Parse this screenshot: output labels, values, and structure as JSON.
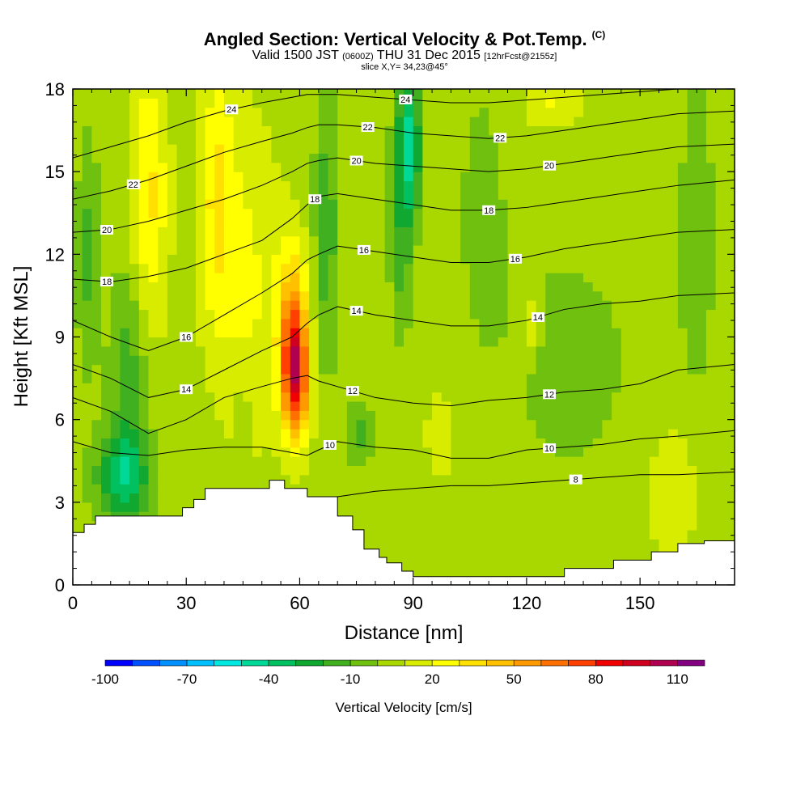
{
  "header": {
    "title": "Angled Section: Vertical Velocity & Pot.Temp.",
    "title_tag": "(C)",
    "subtitle_a": "Valid 1500 JST",
    "subtitle_b": "(0600Z)",
    "subtitle_c": "THU 31 Dec 2015",
    "subtitle_d": "[12hrFcst@2155z]",
    "slice": "slice X,Y= 34,23@45°"
  },
  "chart_data": {
    "type": "heatmap",
    "title": "Angled Section: Vertical Velocity & Pot.Temp.",
    "xlabel": "Distance [nm]",
    "ylabel": "Height [Kft MSL]",
    "xlim": [
      0,
      175
    ],
    "ylim": [
      0,
      18
    ],
    "x_ticks": [
      0,
      30,
      60,
      90,
      120,
      150
    ],
    "y_ticks": [
      0,
      3,
      6,
      9,
      12,
      15,
      18
    ],
    "colorbar": {
      "label": "Vertical Velocity [cm/s]",
      "levels": [
        -100,
        -90,
        -80,
        -70,
        -60,
        -50,
        -40,
        -30,
        -20,
        -10,
        0,
        10,
        20,
        30,
        40,
        50,
        60,
        70,
        80,
        90,
        100,
        110,
        120
      ],
      "tick_labels": [
        "-100",
        "-70",
        "-40",
        "-10",
        "20",
        "50",
        "80",
        "110"
      ],
      "tick_values": [
        -100,
        -70,
        -40,
        -10,
        20,
        50,
        80,
        110
      ],
      "colors": [
        "#0000ff",
        "#0050ff",
        "#0090ff",
        "#00c0ff",
        "#00e8e0",
        "#00d898",
        "#00c060",
        "#10a830",
        "#40b020",
        "#70c010",
        "#a8d800",
        "#d8ec00",
        "#ffff00",
        "#ffe000",
        "#ffc000",
        "#ff9900",
        "#ff7000",
        "#ff4000",
        "#f00000",
        "#d00020",
        "#b00050",
        "#800080"
      ]
    },
    "background_value": 5,
    "velocity_features": [
      {
        "x": 13,
        "y": 3.9,
        "sx": 7,
        "sy": 1.6,
        "v": -38
      },
      {
        "x": 15,
        "y": 7.5,
        "sx": 5,
        "sy": 4.5,
        "v": -22
      },
      {
        "x": 4,
        "y": 12,
        "sx": 3,
        "sy": 4,
        "v": -18
      },
      {
        "x": 20,
        "y": 14,
        "sx": 5,
        "sy": 5,
        "v": 28
      },
      {
        "x": 38,
        "y": 14,
        "sx": 5,
        "sy": 5,
        "v": 26
      },
      {
        "x": 47,
        "y": 11,
        "sx": 8,
        "sy": 6,
        "v": 16
      },
      {
        "x": 59,
        "y": 7.5,
        "sx": 3.5,
        "sy": 2.2,
        "v": 72
      },
      {
        "x": 58,
        "y": 9.5,
        "sx": 4,
        "sy": 3,
        "v": 42
      },
      {
        "x": 67,
        "y": 13,
        "sx": 3,
        "sy": 5,
        "v": -22
      },
      {
        "x": 89,
        "y": 16,
        "sx": 3,
        "sy": 2.5,
        "v": -45
      },
      {
        "x": 87,
        "y": 13,
        "sx": 3,
        "sy": 4,
        "v": -22
      },
      {
        "x": 76,
        "y": 5.5,
        "sx": 4,
        "sy": 1.2,
        "v": -18
      },
      {
        "x": 45,
        "y": 6,
        "sx": 1.5,
        "sy": 1.5,
        "v": -12
      },
      {
        "x": 108,
        "y": 13,
        "sx": 6,
        "sy": 6,
        "v": -8
      },
      {
        "x": 128,
        "y": 8,
        "sx": 30,
        "sy": 6,
        "v": -7
      },
      {
        "x": 127,
        "y": 17.5,
        "sx": 8,
        "sy": 1,
        "v": 16
      },
      {
        "x": 121,
        "y": 9.5,
        "sx": 2,
        "sy": 1,
        "v": 18
      },
      {
        "x": 100,
        "y": 6,
        "sx": 15,
        "sy": 5,
        "v": 8
      },
      {
        "x": 158,
        "y": 3.5,
        "sx": 8,
        "sy": 3,
        "v": 12
      },
      {
        "x": 165,
        "y": 13,
        "sx": 4,
        "sy": 5,
        "v": -14
      }
    ],
    "terrain": {
      "x": [
        0,
        3,
        6,
        10,
        18,
        24,
        29,
        32,
        35,
        45,
        52,
        56,
        62,
        65,
        70,
        74,
        77,
        81,
        83,
        87,
        90,
        95,
        100,
        110,
        120,
        128,
        130,
        135,
        140,
        143,
        148,
        153,
        160,
        167,
        175
      ],
      "height": [
        1.9,
        2.2,
        2.5,
        2.5,
        2.5,
        2.5,
        2.8,
        3.1,
        3.5,
        3.5,
        3.8,
        3.5,
        3.2,
        3.2,
        2.5,
        2.0,
        1.3,
        1.0,
        0.8,
        0.5,
        0.3,
        0.3,
        0.3,
        0.3,
        0.3,
        0.3,
        0.6,
        0.6,
        0.6,
        0.9,
        0.9,
        1.2,
        1.5,
        1.6,
        1.6
      ]
    },
    "theta_contour_x": [
      0,
      10,
      20,
      30,
      40,
      50,
      58,
      62,
      65,
      70,
      80,
      90,
      100,
      110,
      120,
      130,
      140,
      150,
      160,
      175
    ],
    "theta_contours": [
      {
        "value": 8,
        "label": "8",
        "label_x": 133,
        "y": [
          null,
          null,
          null,
          null,
          null,
          null,
          null,
          null,
          null,
          3.2,
          3.4,
          3.5,
          3.6,
          3.6,
          3.7,
          3.8,
          3.9,
          4.0,
          4.0,
          4.1
        ]
      },
      {
        "value": 10,
        "label": "10",
        "label_x": 68,
        "y": [
          5.2,
          4.8,
          4.7,
          4.9,
          5.0,
          5.0,
          4.8,
          4.7,
          4.9,
          5.2,
          5.0,
          4.9,
          4.6,
          4.6,
          4.9,
          5.0,
          5.1,
          5.3,
          5.4,
          5.6
        ]
      },
      {
        "value": 12,
        "label": "12",
        "label_x": 74,
        "y": [
          6.8,
          6.3,
          5.5,
          6.0,
          6.8,
          7.2,
          7.5,
          7.6,
          7.4,
          7.2,
          6.8,
          6.6,
          6.5,
          6.7,
          6.8,
          7.0,
          7.1,
          7.3,
          7.8,
          8.0
        ]
      },
      {
        "value": 14,
        "label": "14",
        "label_x": 30,
        "y": [
          8.0,
          7.5,
          6.8,
          7.1,
          7.8,
          8.5,
          9.0,
          9.5,
          9.8,
          10.1,
          9.8,
          9.6,
          9.4,
          9.4,
          9.6,
          10.0,
          10.2,
          10.3,
          10.5,
          10.6
        ]
      },
      {
        "value": 16,
        "label": "16",
        "label_x": 30,
        "y": [
          9.6,
          9.0,
          8.5,
          9.0,
          9.8,
          10.6,
          11.3,
          11.8,
          12.0,
          12.3,
          12.1,
          11.9,
          11.7,
          11.7,
          11.9,
          12.2,
          12.4,
          12.6,
          12.8,
          12.9
        ]
      },
      {
        "value": 18,
        "label": "18",
        "label_x": 64,
        "y": [
          11.1,
          11.0,
          11.2,
          11.5,
          12.0,
          12.5,
          13.3,
          13.8,
          14.1,
          14.2,
          14.0,
          13.8,
          13.6,
          13.6,
          13.7,
          13.9,
          14.1,
          14.3,
          14.5,
          14.7
        ]
      },
      {
        "value": 20,
        "label": "20",
        "label_x": 9,
        "y": [
          12.8,
          12.9,
          13.2,
          13.6,
          14.0,
          14.5,
          15.0,
          15.3,
          15.4,
          15.5,
          15.3,
          15.2,
          15.1,
          15.0,
          15.1,
          15.3,
          15.5,
          15.7,
          15.9,
          16.0
        ]
      },
      {
        "value": 22,
        "label": "22",
        "label_x": 16,
        "y": [
          14.0,
          14.3,
          14.7,
          15.2,
          15.7,
          16.1,
          16.4,
          16.6,
          16.7,
          16.7,
          16.6,
          16.4,
          16.3,
          16.2,
          16.3,
          16.5,
          16.7,
          16.9,
          17.1,
          17.2
        ]
      },
      {
        "value": 24,
        "label": "24",
        "label_x": 42,
        "y": [
          15.5,
          15.9,
          16.3,
          16.8,
          17.2,
          17.5,
          17.7,
          17.8,
          17.8,
          17.8,
          17.7,
          17.6,
          17.5,
          17.5,
          17.6,
          17.7,
          17.8,
          17.9,
          18.0,
          18.0
        ]
      }
    ],
    "extra_contour_labels": [
      {
        "text": "22",
        "x": 78,
        "value": 22
      },
      {
        "text": "20",
        "x": 75,
        "value": 20
      },
      {
        "text": "16",
        "x": 77,
        "value": 16
      },
      {
        "text": "14",
        "x": 75,
        "value": 14
      },
      {
        "text": "24",
        "x": 88,
        "value": 24
      },
      {
        "text": "22",
        "x": 113,
        "value": 22
      },
      {
        "text": "20",
        "x": 126,
        "value": 20
      },
      {
        "text": "18",
        "x": 110,
        "value": 18
      },
      {
        "text": "16",
        "x": 117,
        "value": 16
      },
      {
        "text": "14",
        "x": 123,
        "value": 14
      },
      {
        "text": "12",
        "x": 126,
        "value": 12
      },
      {
        "text": "10",
        "x": 126,
        "value": 10
      },
      {
        "text": "18",
        "x": 9,
        "value": 18
      }
    ]
  }
}
